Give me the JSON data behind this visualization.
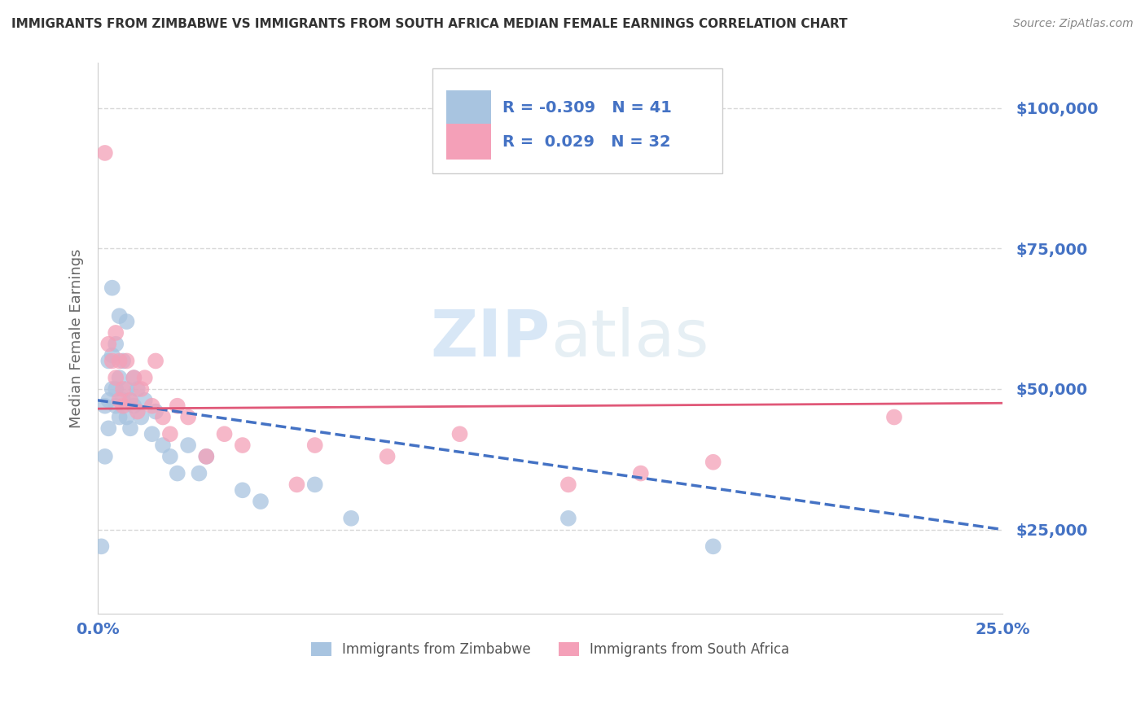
{
  "title": "IMMIGRANTS FROM ZIMBABWE VS IMMIGRANTS FROM SOUTH AFRICA MEDIAN FEMALE EARNINGS CORRELATION CHART",
  "source": "Source: ZipAtlas.com",
  "ylabel": "Median Female Earnings",
  "yticks": [
    25000,
    50000,
    75000,
    100000
  ],
  "ytick_labels": [
    "$25,000",
    "$50,000",
    "$75,000",
    "$100,000"
  ],
  "xlim": [
    0.0,
    0.25
  ],
  "ylim": [
    10000,
    108000
  ],
  "legend_label1": "Immigrants from Zimbabwe",
  "legend_label2": "Immigrants from South Africa",
  "r1": "-0.309",
  "n1": "41",
  "r2": "0.029",
  "n2": "32",
  "color_zimbabwe": "#a8c4e0",
  "color_south_africa": "#f4a0b8",
  "line_color_zimbabwe": "#4472c4",
  "line_color_south_africa": "#e05878",
  "watermark_zip": "ZIP",
  "watermark_atlas": "atlas",
  "background_color": "#ffffff",
  "grid_color": "#d8d8d8",
  "title_color": "#333333",
  "axis_label_color": "#666666",
  "ytick_color": "#4472c4",
  "xtick_color": "#4472c4",
  "zimbabwe_x": [
    0.001,
    0.002,
    0.002,
    0.003,
    0.003,
    0.003,
    0.004,
    0.004,
    0.004,
    0.005,
    0.005,
    0.005,
    0.006,
    0.006,
    0.006,
    0.007,
    0.007,
    0.008,
    0.008,
    0.008,
    0.009,
    0.009,
    0.01,
    0.01,
    0.011,
    0.012,
    0.013,
    0.015,
    0.016,
    0.018,
    0.02,
    0.022,
    0.025,
    0.028,
    0.03,
    0.04,
    0.045,
    0.06,
    0.07,
    0.13,
    0.17
  ],
  "zimbabwe_y": [
    22000,
    38000,
    47000,
    43000,
    48000,
    55000,
    50000,
    56000,
    68000,
    47000,
    50000,
    58000,
    45000,
    52000,
    63000,
    48000,
    55000,
    45000,
    50000,
    62000,
    43000,
    48000,
    47000,
    52000,
    50000,
    45000,
    48000,
    42000,
    46000,
    40000,
    38000,
    35000,
    40000,
    35000,
    38000,
    32000,
    30000,
    33000,
    27000,
    27000,
    22000
  ],
  "south_africa_x": [
    0.002,
    0.003,
    0.004,
    0.005,
    0.005,
    0.006,
    0.006,
    0.007,
    0.007,
    0.008,
    0.009,
    0.01,
    0.011,
    0.012,
    0.013,
    0.015,
    0.016,
    0.018,
    0.02,
    0.022,
    0.025,
    0.03,
    0.035,
    0.04,
    0.055,
    0.06,
    0.08,
    0.1,
    0.13,
    0.15,
    0.17,
    0.22
  ],
  "south_africa_y": [
    92000,
    58000,
    55000,
    52000,
    60000,
    48000,
    55000,
    50000,
    47000,
    55000,
    48000,
    52000,
    46000,
    50000,
    52000,
    47000,
    55000,
    45000,
    42000,
    47000,
    45000,
    38000,
    42000,
    40000,
    33000,
    40000,
    38000,
    42000,
    33000,
    35000,
    37000,
    45000
  ],
  "line_zim_x0": 0.0,
  "line_zim_y0": 48000,
  "line_zim_x1": 0.25,
  "line_zim_y1": 25000,
  "line_sa_x0": 0.0,
  "line_sa_y0": 46500,
  "line_sa_x1": 0.25,
  "line_sa_y1": 47500
}
